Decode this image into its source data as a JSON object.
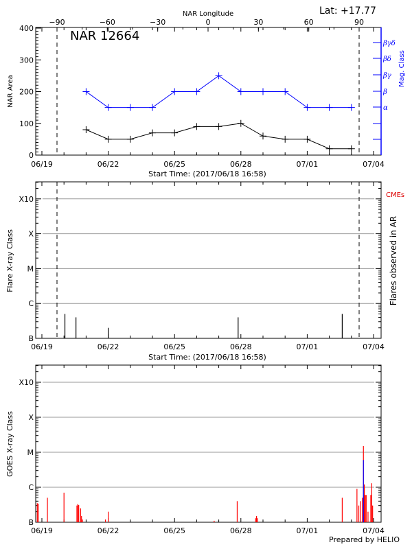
{
  "header": {
    "top_axis_title": "NAR Longitude",
    "latitude": "Lat: +17.77",
    "region_title": "NAR 12664",
    "footer": "Prepared by HELIO",
    "start_time_label": "Start Time: (2017/06/18 16:58)"
  },
  "chart_data": [
    {
      "type": "line",
      "title": "NAR 12664",
      "xlabel": "Start Time: (2017/06/18 16:58)",
      "ylabel": "NAR Area",
      "ylabel_right": "Mag. Class",
      "top_xlabel": "NAR Longitude",
      "top_xticks": [
        "-90",
        "-60",
        "-30",
        "0",
        "30",
        "60",
        "90"
      ],
      "xticks": [
        "06/19",
        "06/22",
        "06/25",
        "06/28",
        "07/01",
        "07/04"
      ],
      "yticks": [
        "0",
        "100",
        "200",
        "300",
        "400"
      ],
      "ylim": [
        0,
        400
      ],
      "right_yticks": [
        "α",
        "β",
        "βγ",
        "βδ",
        "βγδ"
      ],
      "x": [
        "06/21",
        "06/22",
        "06/23",
        "06/24",
        "06/25",
        "06/26",
        "06/27",
        "06/28",
        "06/29",
        "06/30",
        "07/01",
        "07/02",
        "07/03"
      ],
      "series": [
        {
          "name": "NAR Area",
          "color": "#000000",
          "values": [
            80,
            50,
            50,
            70,
            70,
            90,
            90,
            100,
            60,
            50,
            50,
            20,
            20
          ]
        },
        {
          "name": "Mag. Class",
          "color": "#0000ff",
          "values": [
            200,
            150,
            150,
            150,
            200,
            200,
            250,
            200,
            200,
            200,
            150,
            150,
            150
          ],
          "classes": [
            "β",
            "α",
            "α",
            "α",
            "β",
            "β",
            "βγ",
            "β",
            "β",
            "β",
            "α",
            "α",
            "α"
          ]
        }
      ],
      "vlines_dashed": [
        "limb -90 (~06/20)",
        "limb +90 (~07/03)"
      ]
    },
    {
      "type": "bar",
      "title": "",
      "xlabel": "Start Time: (2017/06/18 16:58)",
      "ylabel": "Flare X-ray Class",
      "ylabel_right": "Flares observed in AR",
      "legend": [
        "CMEs"
      ],
      "xticks": [
        "06/19",
        "06/22",
        "06/25",
        "06/28",
        "07/01",
        "07/04"
      ],
      "yticks": [
        "B",
        "C",
        "M",
        "X",
        "X10"
      ],
      "x": [
        "06/20 01:00",
        "06/20 13:00",
        "06/22 00:00",
        "06/27 21:00",
        "07/02 14:00"
      ],
      "values": [
        "B5",
        "B4",
        "B2",
        "B4",
        "B5"
      ],
      "grid": true
    },
    {
      "type": "line",
      "title": "",
      "ylabel": "GOES X-ray Class",
      "xticks": [
        "06/19",
        "06/22",
        "06/25",
        "06/28",
        "07/01",
        "07/04"
      ],
      "yticks": [
        "B",
        "C",
        "M",
        "X",
        "X10"
      ],
      "series": [
        {
          "name": "GOES long",
          "color": "#ff0000",
          "peaks": [
            {
              "x": "06/18 20:00",
              "v": "B4"
            },
            {
              "x": "06/19 06:00",
              "v": "B5"
            },
            {
              "x": "06/20 00:00",
              "v": "B7"
            },
            {
              "x": "06/20 22:00",
              "v": "B4"
            },
            {
              "x": "06/22 00:00",
              "v": "B2"
            },
            {
              "x": "06/27 20:00",
              "v": "B4"
            },
            {
              "x": "06/28 18:00",
              "v": "B1"
            },
            {
              "x": "07/02 14:00",
              "v": "B5"
            },
            {
              "x": "07/03 13:00",
              "v": "M1.5"
            },
            {
              "x": "07/03 22:00",
              "v": "C1.3"
            }
          ]
        },
        {
          "name": "GOES short",
          "color": "#0000ff",
          "peaks": [
            {
              "x": "07/03 13:00",
              "v": "C6"
            },
            {
              "x": "07/03 23:00",
              "v": "B1"
            }
          ]
        }
      ],
      "grid": true
    }
  ]
}
